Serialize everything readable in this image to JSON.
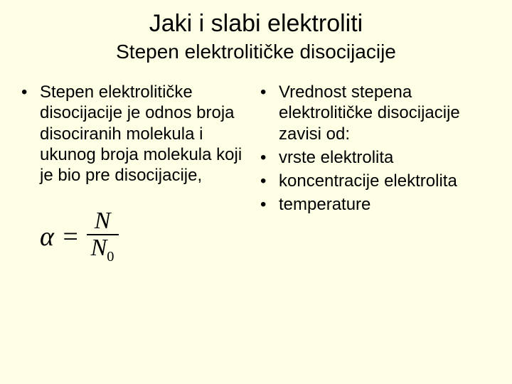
{
  "background_color": "#ffffe6",
  "text_color": "#000000",
  "title": "Jaki i slabi elektroliti",
  "title_fontsize": 34,
  "subtitle": "Stepen elektrolitičke disocijacije",
  "subtitle_fontsize": 28,
  "body_fontsize": 24,
  "left_column": {
    "bullets": [
      "Stepen elektrolitičke disocijacije je odnos broja disociranih molekula i ukunog broja molekula koji je bio pre disocijacije,"
    ]
  },
  "right_column": {
    "bullets": [
      "Vrednost stepena elektrolitičke disocijacije zavisi od:",
      "vrste elektrolita",
      "koncentracije elektrolita",
      "temperature"
    ]
  },
  "formula": {
    "lhs": "α",
    "eq": "=",
    "numerator": "N",
    "denominator_base": "N",
    "denominator_sub": "0",
    "font_family": "Times New Roman",
    "fontsize": 38
  }
}
